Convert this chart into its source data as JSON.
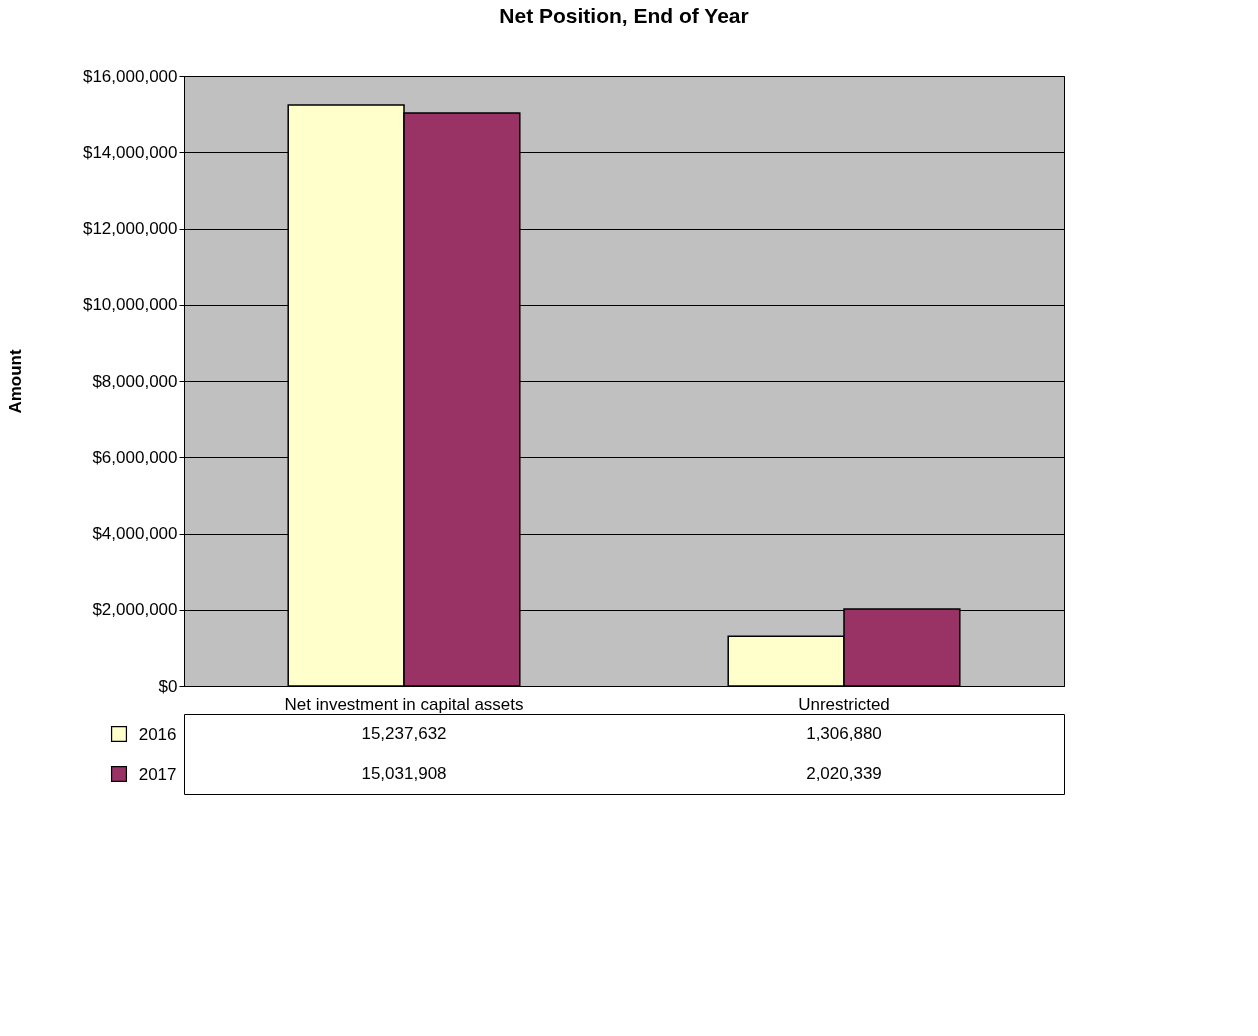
{
  "chart_data": {
    "type": "bar",
    "title": "Net Position, End of Year",
    "ylabel": "Amount",
    "categories": [
      "Net investment in capital assets",
      "Unrestricted"
    ],
    "series": [
      {
        "name": "2016",
        "color": "#ffffcc",
        "values": [
          15237632,
          1306880
        ],
        "value_labels": [
          "15,237,632",
          "1,306,880"
        ]
      },
      {
        "name": "2017",
        "color": "#993366",
        "values": [
          15031908,
          2020339
        ],
        "value_labels": [
          "15,031,908",
          "2,020,339"
        ]
      }
    ],
    "ylim": [
      0,
      16000000
    ],
    "yticks": [
      {
        "value": 0,
        "label": "$0"
      },
      {
        "value": 2000000,
        "label": "$2,000,000"
      },
      {
        "value": 4000000,
        "label": "$4,000,000"
      },
      {
        "value": 6000000,
        "label": "$6,000,000"
      },
      {
        "value": 8000000,
        "label": "$8,000,000"
      },
      {
        "value": 10000000,
        "label": "$10,000,000"
      },
      {
        "value": 12000000,
        "label": "$12,000,000"
      },
      {
        "value": 14000000,
        "label": "$14,000,000"
      },
      {
        "value": 16000000,
        "label": "$16,000,000"
      }
    ],
    "grid": "y",
    "legend": "bottom"
  }
}
